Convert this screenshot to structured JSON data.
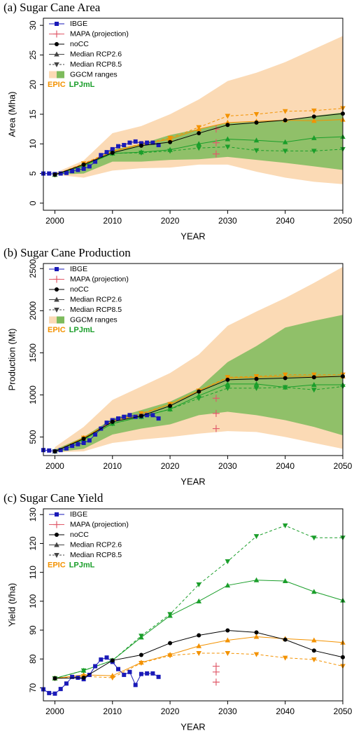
{
  "chart_data": [
    {
      "type": "line",
      "title": "(a) Sugar Cane Area",
      "xlabel": "YEAR",
      "ylabel": "Area (Mha)",
      "xlim": [
        1998,
        2050
      ],
      "ylim": [
        -1.2,
        31.2
      ],
      "xticks": [
        2000,
        2010,
        2020,
        2030,
        2040,
        2050
      ],
      "yticks": [
        0,
        5,
        10,
        15,
        20,
        25,
        30
      ],
      "series": [
        {
          "name": "IBGE",
          "color": "#1a1ab8",
          "marker": "square",
          "x": [
            1998,
            1999,
            2000,
            2001,
            2002,
            2003,
            2004,
            2005,
            2006,
            2007,
            2008,
            2009,
            2010,
            2011,
            2012,
            2013,
            2014,
            2015,
            2016,
            2017,
            2018
          ],
          "values": [
            5.0,
            5.0,
            4.9,
            5.0,
            5.1,
            5.4,
            5.6,
            5.8,
            6.2,
            7.0,
            8.1,
            8.6,
            9.1,
            9.6,
            9.8,
            10.2,
            10.4,
            10.1,
            10.2,
            10.2,
            9.8
          ]
        },
        {
          "name": "MAPA (projection)",
          "color": "#e05a6a",
          "marker": "plus",
          "x": [
            2028,
            2028,
            2028
          ],
          "values": [
            8.3,
            10.2,
            12.5
          ]
        },
        {
          "name": "noCC",
          "color": "#000000",
          "marker": "circle",
          "x": [
            2000,
            2005,
            2010,
            2015,
            2020,
            2025,
            2030,
            2035,
            2040,
            2045,
            2050
          ],
          "values": [
            4.8,
            6.5,
            8.5,
            9.7,
            10.3,
            11.8,
            13.2,
            13.6,
            14.0,
            14.6,
            15.1
          ]
        }
      ],
      "range_label": "GGCM ranges",
      "models": [
        {
          "name": "EPIC",
          "color": "#f39200",
          "band_color": "#fbdab5",
          "x": [
            2000,
            2005,
            2010,
            2015,
            2020,
            2025,
            2030,
            2035,
            2040,
            2045,
            2050
          ],
          "range_low": [
            4.8,
            4.3,
            5.5,
            5.9,
            6.0,
            6.5,
            6.5,
            5.3,
            4.3,
            3.6,
            3.2
          ],
          "range_high": [
            5.1,
            7.2,
            11.8,
            13.0,
            15.0,
            17.5,
            20.6,
            22.0,
            23.8,
            26.0,
            28.2
          ],
          "series": [
            {
              "name": "Median RCP2.6",
              "marker": "triangle-up",
              "dash": false,
              "values": [
                4.8,
                6.6,
                8.7,
                9.9,
                10.8,
                12.5,
                13.6,
                13.8,
                14.0,
                13.9,
                14.1
              ]
            },
            {
              "name": "Median RCP8.5",
              "marker": "triangle-down",
              "dash": true,
              "values": [
                4.8,
                6.7,
                8.8,
                10.0,
                11.0,
                12.8,
                14.7,
                15.0,
                15.5,
                15.6,
                16.0
              ]
            }
          ]
        },
        {
          "name": "LPJmL",
          "color": "#1a9e2a",
          "band_color": "#7dbb5c",
          "x": [
            2000,
            2005,
            2010,
            2015,
            2020,
            2025,
            2030,
            2035,
            2040,
            2045,
            2050
          ],
          "range_low": [
            4.8,
            5.0,
            7.0,
            7.0,
            7.3,
            7.4,
            7.8,
            7.3,
            6.8,
            6.2,
            5.6
          ],
          "range_high": [
            4.9,
            6.4,
            9.0,
            10.0,
            11.5,
            12.5,
            13.5,
            13.7,
            14.0,
            14.7,
            15.3
          ],
          "series": [
            {
              "name": "Median RCP2.6",
              "marker": "triangle-up",
              "dash": false,
              "values": [
                4.8,
                6.3,
                8.4,
                8.6,
                9.0,
                10.0,
                10.8,
                10.6,
                10.3,
                11.0,
                11.2
              ]
            },
            {
              "name": "Median RCP8.5",
              "marker": "triangle-down",
              "dash": true,
              "values": [
                4.8,
                6.3,
                8.4,
                8.5,
                8.8,
                9.3,
                9.5,
                8.9,
                8.8,
                8.8,
                9.1
              ]
            }
          ]
        }
      ]
    },
    {
      "type": "line",
      "title": "(b) Sugar Cane Production",
      "xlabel": "YEAR",
      "ylabel": "Production (Mt)",
      "xlim": [
        1998,
        2050
      ],
      "ylim": [
        280,
        2560
      ],
      "xticks": [
        2000,
        2010,
        2020,
        2030,
        2040,
        2050
      ],
      "yticks": [
        500,
        1000,
        1500,
        2000,
        2500
      ],
      "series": [
        {
          "name": "IBGE",
          "color": "#1a1ab8",
          "marker": "square",
          "x": [
            1998,
            1999,
            2000,
            2001,
            2002,
            2003,
            2004,
            2005,
            2006,
            2007,
            2008,
            2009,
            2010,
            2011,
            2012,
            2013,
            2014,
            2015,
            2016,
            2017,
            2018
          ],
          "values": [
            345,
            340,
            330,
            345,
            365,
            395,
            415,
            430,
            460,
            530,
            600,
            670,
            700,
            720,
            740,
            760,
            740,
            750,
            760,
            760,
            720
          ]
        },
        {
          "name": "MAPA (projection)",
          "color": "#e05a6a",
          "marker": "plus",
          "x": [
            2028,
            2028,
            2028
          ],
          "values": [
            600,
            780,
            960
          ]
        },
        {
          "name": "noCC",
          "color": "#000000",
          "marker": "circle",
          "x": [
            2000,
            2005,
            2010,
            2015,
            2020,
            2025,
            2030,
            2035,
            2040,
            2045,
            2050
          ],
          "values": [
            330,
            480,
            680,
            750,
            870,
            1040,
            1180,
            1190,
            1200,
            1210,
            1220
          ]
        }
      ],
      "range_label": "GGCM ranges",
      "models": [
        {
          "name": "EPIC",
          "color": "#f39200",
          "band_color": "#fbdab5",
          "x": [
            2000,
            2005,
            2010,
            2015,
            2020,
            2025,
            2030,
            2035,
            2040,
            2045,
            2050
          ],
          "range_low": [
            320,
            330,
            430,
            470,
            500,
            540,
            570,
            560,
            500,
            430,
            360
          ],
          "range_high": [
            380,
            620,
            940,
            1100,
            1260,
            1480,
            1820,
            1990,
            2150,
            2330,
            2520
          ],
          "series": [
            {
              "name": "Median RCP2.6",
              "marker": "triangle-up",
              "dash": false,
              "values": [
                330,
                490,
                690,
                770,
                890,
                1050,
                1200,
                1210,
                1220,
                1220,
                1220
              ]
            },
            {
              "name": "Median RCP8.5",
              "marker": "triangle-down",
              "dash": true,
              "values": [
                330,
                490,
                690,
                780,
                890,
                1050,
                1210,
                1220,
                1240,
                1240,
                1240
              ]
            }
          ]
        },
        {
          "name": "LPJmL",
          "color": "#1a9e2a",
          "band_color": "#7dbb5c",
          "x": [
            2000,
            2005,
            2010,
            2015,
            2020,
            2025,
            2030,
            2035,
            2040,
            2045,
            2050
          ],
          "range_low": [
            320,
            360,
            530,
            600,
            650,
            760,
            800,
            760,
            700,
            620,
            520
          ],
          "range_high": [
            350,
            500,
            720,
            820,
            920,
            1080,
            1390,
            1580,
            1800,
            1880,
            1950
          ],
          "series": [
            {
              "name": "Median RCP2.6",
              "marker": "triangle-up",
              "dash": false,
              "values": [
                330,
                470,
                660,
                740,
                830,
                990,
                1130,
                1130,
                1090,
                1120,
                1120
              ]
            },
            {
              "name": "Median RCP8.5",
              "marker": "triangle-down",
              "dash": true,
              "values": [
                330,
                470,
                660,
                740,
                830,
                960,
                1080,
                1080,
                1090,
                1060,
                1100
              ]
            }
          ]
        }
      ]
    },
    {
      "type": "line",
      "title": "(c) Sugar Cane Yield",
      "xlabel": "YEAR",
      "ylabel": "Yield (t/ha)",
      "xlim": [
        1998,
        2050
      ],
      "ylim": [
        65.5,
        132
      ],
      "xticks": [
        2000,
        2010,
        2020,
        2030,
        2040,
        2050
      ],
      "yticks": [
        70,
        80,
        90,
        100,
        110,
        120,
        130
      ],
      "series": [
        {
          "name": "IBGE",
          "color": "#1a1ab8",
          "marker": "square",
          "x": [
            1998,
            1999,
            2000,
            2001,
            2002,
            2003,
            2004,
            2005,
            2006,
            2007,
            2008,
            2009,
            2010,
            2011,
            2012,
            2013,
            2014,
            2015,
            2016,
            2017,
            2018
          ],
          "values": [
            69.5,
            68.2,
            68.0,
            69.6,
            71.5,
            73.8,
            73.5,
            73.0,
            74.5,
            77.5,
            79.8,
            80.5,
            79.0,
            76.5,
            74.5,
            75.5,
            71.0,
            74.8,
            75.0,
            75.0,
            73.8
          ]
        },
        {
          "name": "MAPA (projection)",
          "color": "#e05a6a",
          "marker": "plus",
          "x": [
            2028,
            2028,
            2028
          ],
          "values": [
            72,
            75.5,
            77.5
          ]
        },
        {
          "name": "noCC",
          "color": "#000000",
          "marker": "circle",
          "x": [
            2000,
            2005,
            2010,
            2015,
            2020,
            2025,
            2030,
            2035,
            2040,
            2045,
            2050
          ],
          "values": [
            73.3,
            73.5,
            79.5,
            81.4,
            85.5,
            88.2,
            89.9,
            89.2,
            86.7,
            82.9,
            80.6
          ]
        }
      ],
      "models": [
        {
          "name": "EPIC",
          "color": "#f39200",
          "x": [
            2000,
            2005,
            2010,
            2015,
            2020,
            2025,
            2030,
            2035,
            2040,
            2045,
            2050
          ],
          "series": [
            {
              "name": "Median RCP2.6",
              "marker": "triangle-up",
              "dash": false,
              "values": [
                73.3,
                74.5,
                74.2,
                78.8,
                81.5,
                84.5,
                86.5,
                87.7,
                87.0,
                86.5,
                85.7
              ]
            },
            {
              "name": "Median RCP8.5",
              "marker": "triangle-down",
              "dash": true,
              "values": [
                73.3,
                74.0,
                73.5,
                78.6,
                81.2,
                82.0,
                82.0,
                81.6,
                80.4,
                79.8,
                77.5
              ]
            }
          ]
        },
        {
          "name": "LPJmL",
          "color": "#1a9e2a",
          "x": [
            2000,
            2005,
            2010,
            2015,
            2020,
            2025,
            2030,
            2035,
            2040,
            2045,
            2050
          ],
          "series": [
            {
              "name": "Median RCP2.6",
              "marker": "triangle-up",
              "dash": false,
              "values": [
                73.3,
                76.0,
                79.5,
                87.5,
                95.0,
                100.0,
                105.5,
                107.3,
                107.0,
                103.3,
                100.3
              ]
            },
            {
              "name": "Median RCP8.5",
              "marker": "triangle-down",
              "dash": true,
              "values": [
                73.3,
                76.0,
                79.5,
                88.0,
                95.5,
                105.8,
                113.8,
                122.5,
                126.2,
                122.0,
                122.0
              ]
            }
          ]
        }
      ]
    }
  ]
}
